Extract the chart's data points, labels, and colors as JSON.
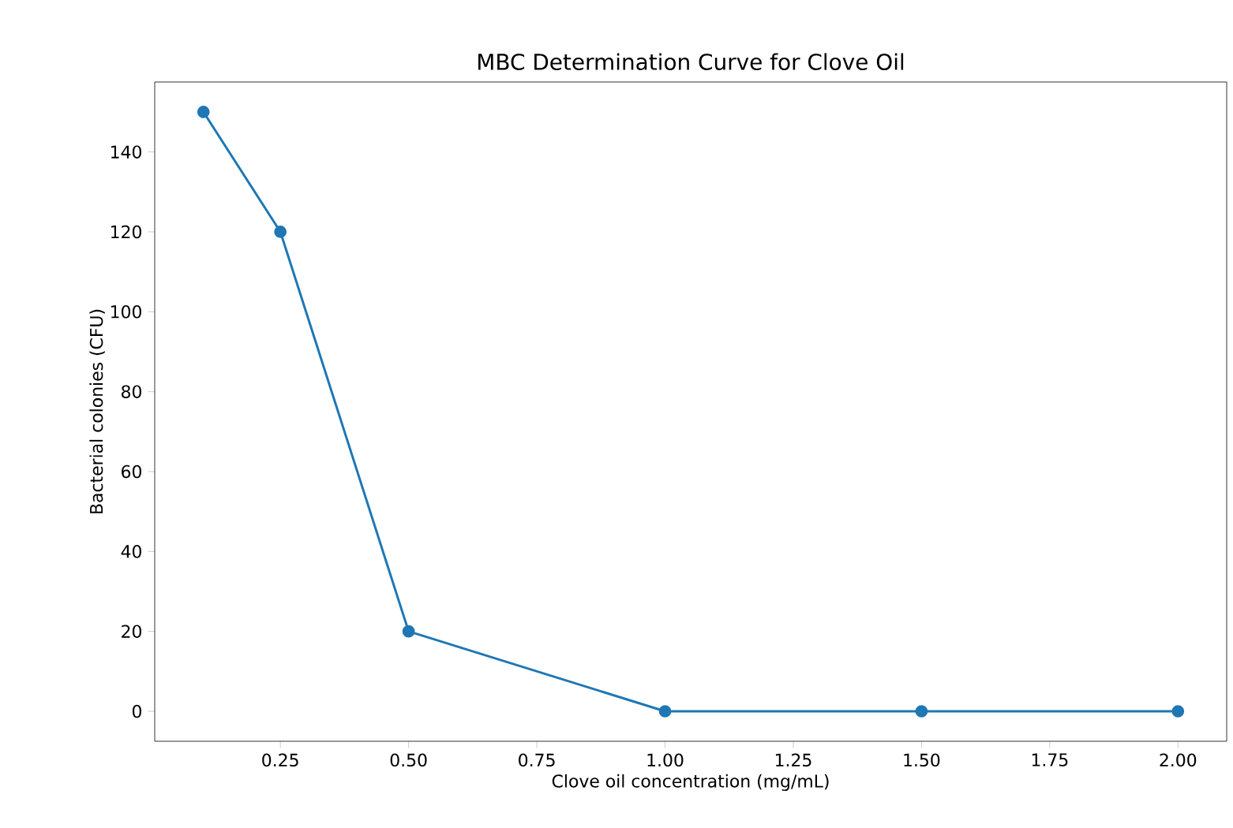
{
  "chart_data": {
    "type": "line",
    "title": "MBC Determination Curve for Clove Oil",
    "xlabel": "Clove oil concentration (mg/mL)",
    "ylabel": "Bacterial colonies (CFU)",
    "x": [
      0.1,
      0.25,
      0.5,
      1.0,
      1.5,
      2.0
    ],
    "series": [
      {
        "color": "#1f77b4",
        "values": [
          150,
          120,
          20,
          0,
          0,
          0
        ]
      }
    ],
    "xlim": [
      0.005,
      2.095
    ],
    "ylim": [
      -7.5,
      157.5
    ],
    "xticks": [
      {
        "value": 0.25,
        "label": "0.25"
      },
      {
        "value": 0.5,
        "label": "0.50"
      },
      {
        "value": 0.75,
        "label": "0.75"
      },
      {
        "value": 1.0,
        "label": "1.00"
      },
      {
        "value": 1.25,
        "label": "1.25"
      },
      {
        "value": 1.5,
        "label": "1.50"
      },
      {
        "value": 1.75,
        "label": "1.75"
      },
      {
        "value": 2.0,
        "label": "2.00"
      }
    ],
    "yticks": [
      0,
      20,
      40,
      60,
      80,
      100,
      120,
      140
    ],
    "marker": "circle",
    "line_style": "solid"
  }
}
